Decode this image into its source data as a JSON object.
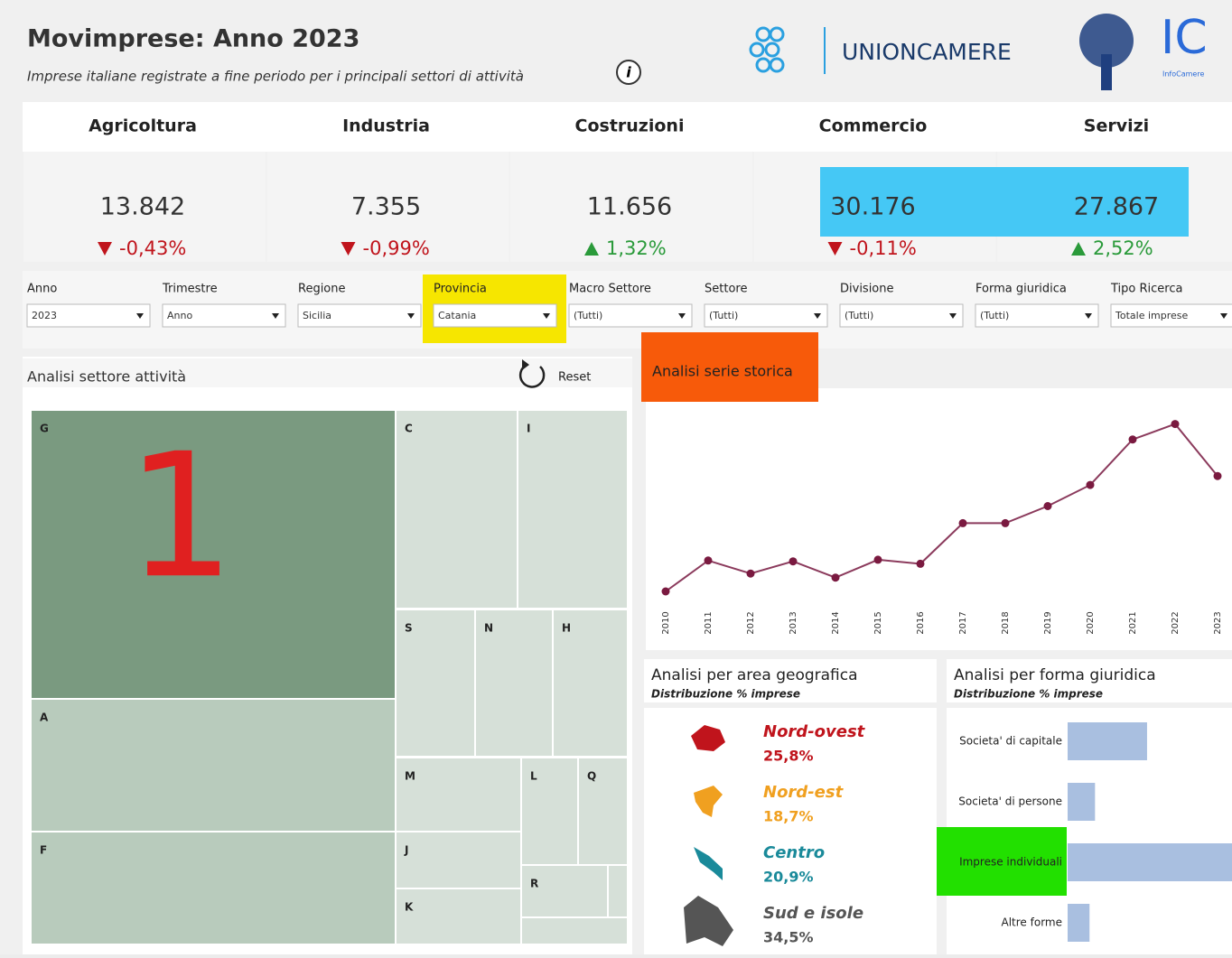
{
  "header": {
    "title": "Movimprese: Anno 2023",
    "subtitle": "Imprese italiane registrate a fine periodo per i principali settori di attività",
    "info_icon": "i",
    "logo_text": "UNIONCAMERE",
    "logo2_text": "IC",
    "logo2_sub": "InfoCamere"
  },
  "kpis": [
    {
      "name": "Agricoltura",
      "value": "13.842",
      "change": "-0,43%",
      "trend": "down"
    },
    {
      "name": "Industria",
      "value": "7.355",
      "change": "-0,99%",
      "trend": "down"
    },
    {
      "name": "Costruzioni",
      "value": "11.656",
      "change": "1,32%",
      "trend": "up"
    },
    {
      "name": "Commercio",
      "value": "30.176",
      "change": "-0,11%",
      "trend": "down"
    },
    {
      "name": "Servizi",
      "value": "27.867",
      "change": "2,52%",
      "trend": "up"
    }
  ],
  "filters": [
    {
      "label": "Anno",
      "value": "2023"
    },
    {
      "label": "Trimestre",
      "value": "Anno"
    },
    {
      "label": "Regione",
      "value": "Sicilia"
    },
    {
      "label": "Provincia",
      "value": "Catania"
    },
    {
      "label": "Macro Settore",
      "value": "(Tutti)"
    },
    {
      "label": "Settore",
      "value": "(Tutti)"
    },
    {
      "label": "Divisione",
      "value": "(Tutti)"
    },
    {
      "label": "Forma giuridica",
      "value": "(Tutti)"
    },
    {
      "label": "Tipo Ricerca",
      "value": "Totale imprese"
    }
  ],
  "treemap": {
    "title": "Analisi settore attività",
    "reset": "Reset",
    "annotation": "1",
    "labels": [
      "G",
      "A",
      "F",
      "C",
      "I",
      "S",
      "N",
      "H",
      "M",
      "L",
      "Q",
      "J",
      "R",
      "K"
    ]
  },
  "chart_data": {
    "type": "line",
    "title": "Analisi serie storica",
    "categories": [
      "2010",
      "2011",
      "2012",
      "2013",
      "2014",
      "2015",
      "2016",
      "2017",
      "2018",
      "2019",
      "2020",
      "2021",
      "2022",
      "2023"
    ],
    "values": [
      50,
      88,
      72,
      87,
      67,
      89,
      84,
      134,
      134,
      155,
      181,
      237,
      256,
      192
    ],
    "ylim": [
      0,
      300
    ],
    "color": "#8b3a5c"
  },
  "geo": {
    "title": "Analisi per area geografica",
    "subtitle": "Distribuzione % imprese",
    "areas": [
      {
        "name": "Nord-ovest",
        "share": "25,8%",
        "color": "#c0141c"
      },
      {
        "name": "Nord-est",
        "share": "18,7%",
        "color": "#f0a020"
      },
      {
        "name": "Centro",
        "share": "20,9%",
        "color": "#1a8a9a"
      },
      {
        "name": "Sud e isole",
        "share": "34,5%",
        "color": "#555555"
      }
    ]
  },
  "forma": {
    "type": "bar",
    "title": "Analisi per forma giuridica",
    "subtitle": "Distribuzione % imprese",
    "categories": [
      "Societa' di capitale",
      "Societa' di persone",
      "Imprese individuali",
      "Altre forme"
    ],
    "values": [
      29,
      10,
      60,
      8
    ],
    "xlim": [
      0,
      60
    ],
    "color": "#a9bfe0"
  }
}
